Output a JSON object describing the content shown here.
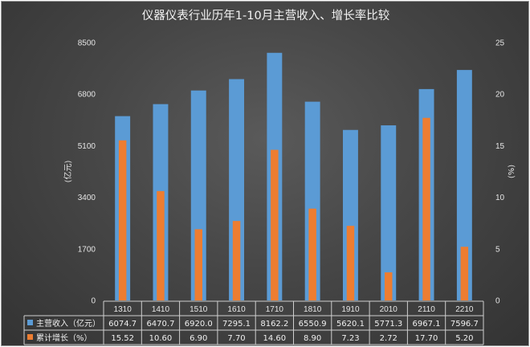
{
  "chart_data": {
    "type": "bar",
    "title": "仪器仪表行业历年1-10月主营收入、增长率比较",
    "categories": [
      "1310",
      "1410",
      "1510",
      "1610",
      "1710",
      "1810",
      "1910",
      "2010",
      "2110",
      "2210"
    ],
    "series": [
      {
        "name": "主营收入（亿元）",
        "axis": "left",
        "color": "#5b9bd5",
        "values": [
          6074.7,
          6470.7,
          6920.0,
          7295.1,
          8162.2,
          6550.9,
          5620.1,
          5771.3,
          6967.1,
          7596.7
        ]
      },
      {
        "name": "累计增长（%）",
        "axis": "right",
        "color": "#ed7d31",
        "values": [
          15.52,
          10.6,
          6.9,
          7.7,
          14.6,
          8.9,
          7.23,
          2.72,
          17.7,
          5.2
        ]
      }
    ],
    "value_labels": {
      "left": [
        "6074.7",
        "6470.7",
        "6920.0",
        "7295.1",
        "8162.2",
        "6550.9",
        "5620.1",
        "5771.3",
        "6967.1",
        "7596.7"
      ],
      "right": [
        "15.52",
        "10.60",
        "6.90",
        "7.70",
        "14.60",
        "8.90",
        "7.23",
        "2.72",
        "17.70",
        "5.20"
      ]
    },
    "ylabel_left": "(亿元)",
    "ylabel_right": "(%)",
    "ylim_left": [
      0,
      8500
    ],
    "ylim_right": [
      0,
      25
    ],
    "yticks_left": [
      "0",
      "1700",
      "3400",
      "5100",
      "6800",
      "8500"
    ],
    "yticks_right": [
      "0",
      "5",
      "10",
      "15",
      "20",
      "25"
    ],
    "grid": false,
    "legend": "data-table"
  }
}
